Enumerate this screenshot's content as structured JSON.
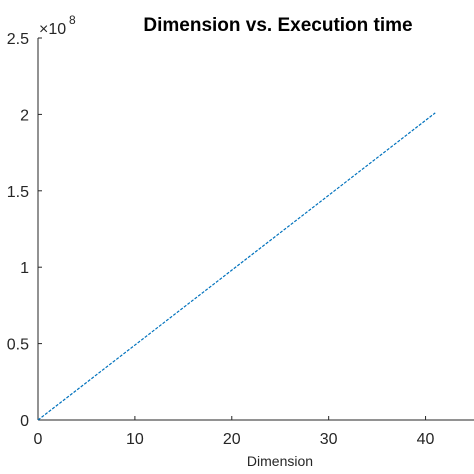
{
  "chart_data": {
    "type": "line",
    "title": "Dimension vs. Execution time",
    "xlabel": "Dimension",
    "ylabel": "",
    "xlim": [
      0,
      45
    ],
    "ylim": [
      0,
      2.5
    ],
    "xticks": [
      0,
      10,
      20,
      30,
      40
    ],
    "xtick_labels": [
      "0",
      "10",
      "20",
      "30",
      "40"
    ],
    "yticks": [
      0,
      0.5,
      1,
      1.5,
      2,
      2.5
    ],
    "ytick_labels": [
      "0",
      "0.5",
      "1",
      "1.5",
      "2",
      "2.5"
    ],
    "y_exponent_base": "×10",
    "y_exponent_power": "8",
    "grid": false,
    "series": [
      {
        "color": "#0072BD",
        "style": "dashed",
        "x": [
          0,
          41
        ],
        "y": [
          0,
          2.01
        ]
      }
    ]
  }
}
